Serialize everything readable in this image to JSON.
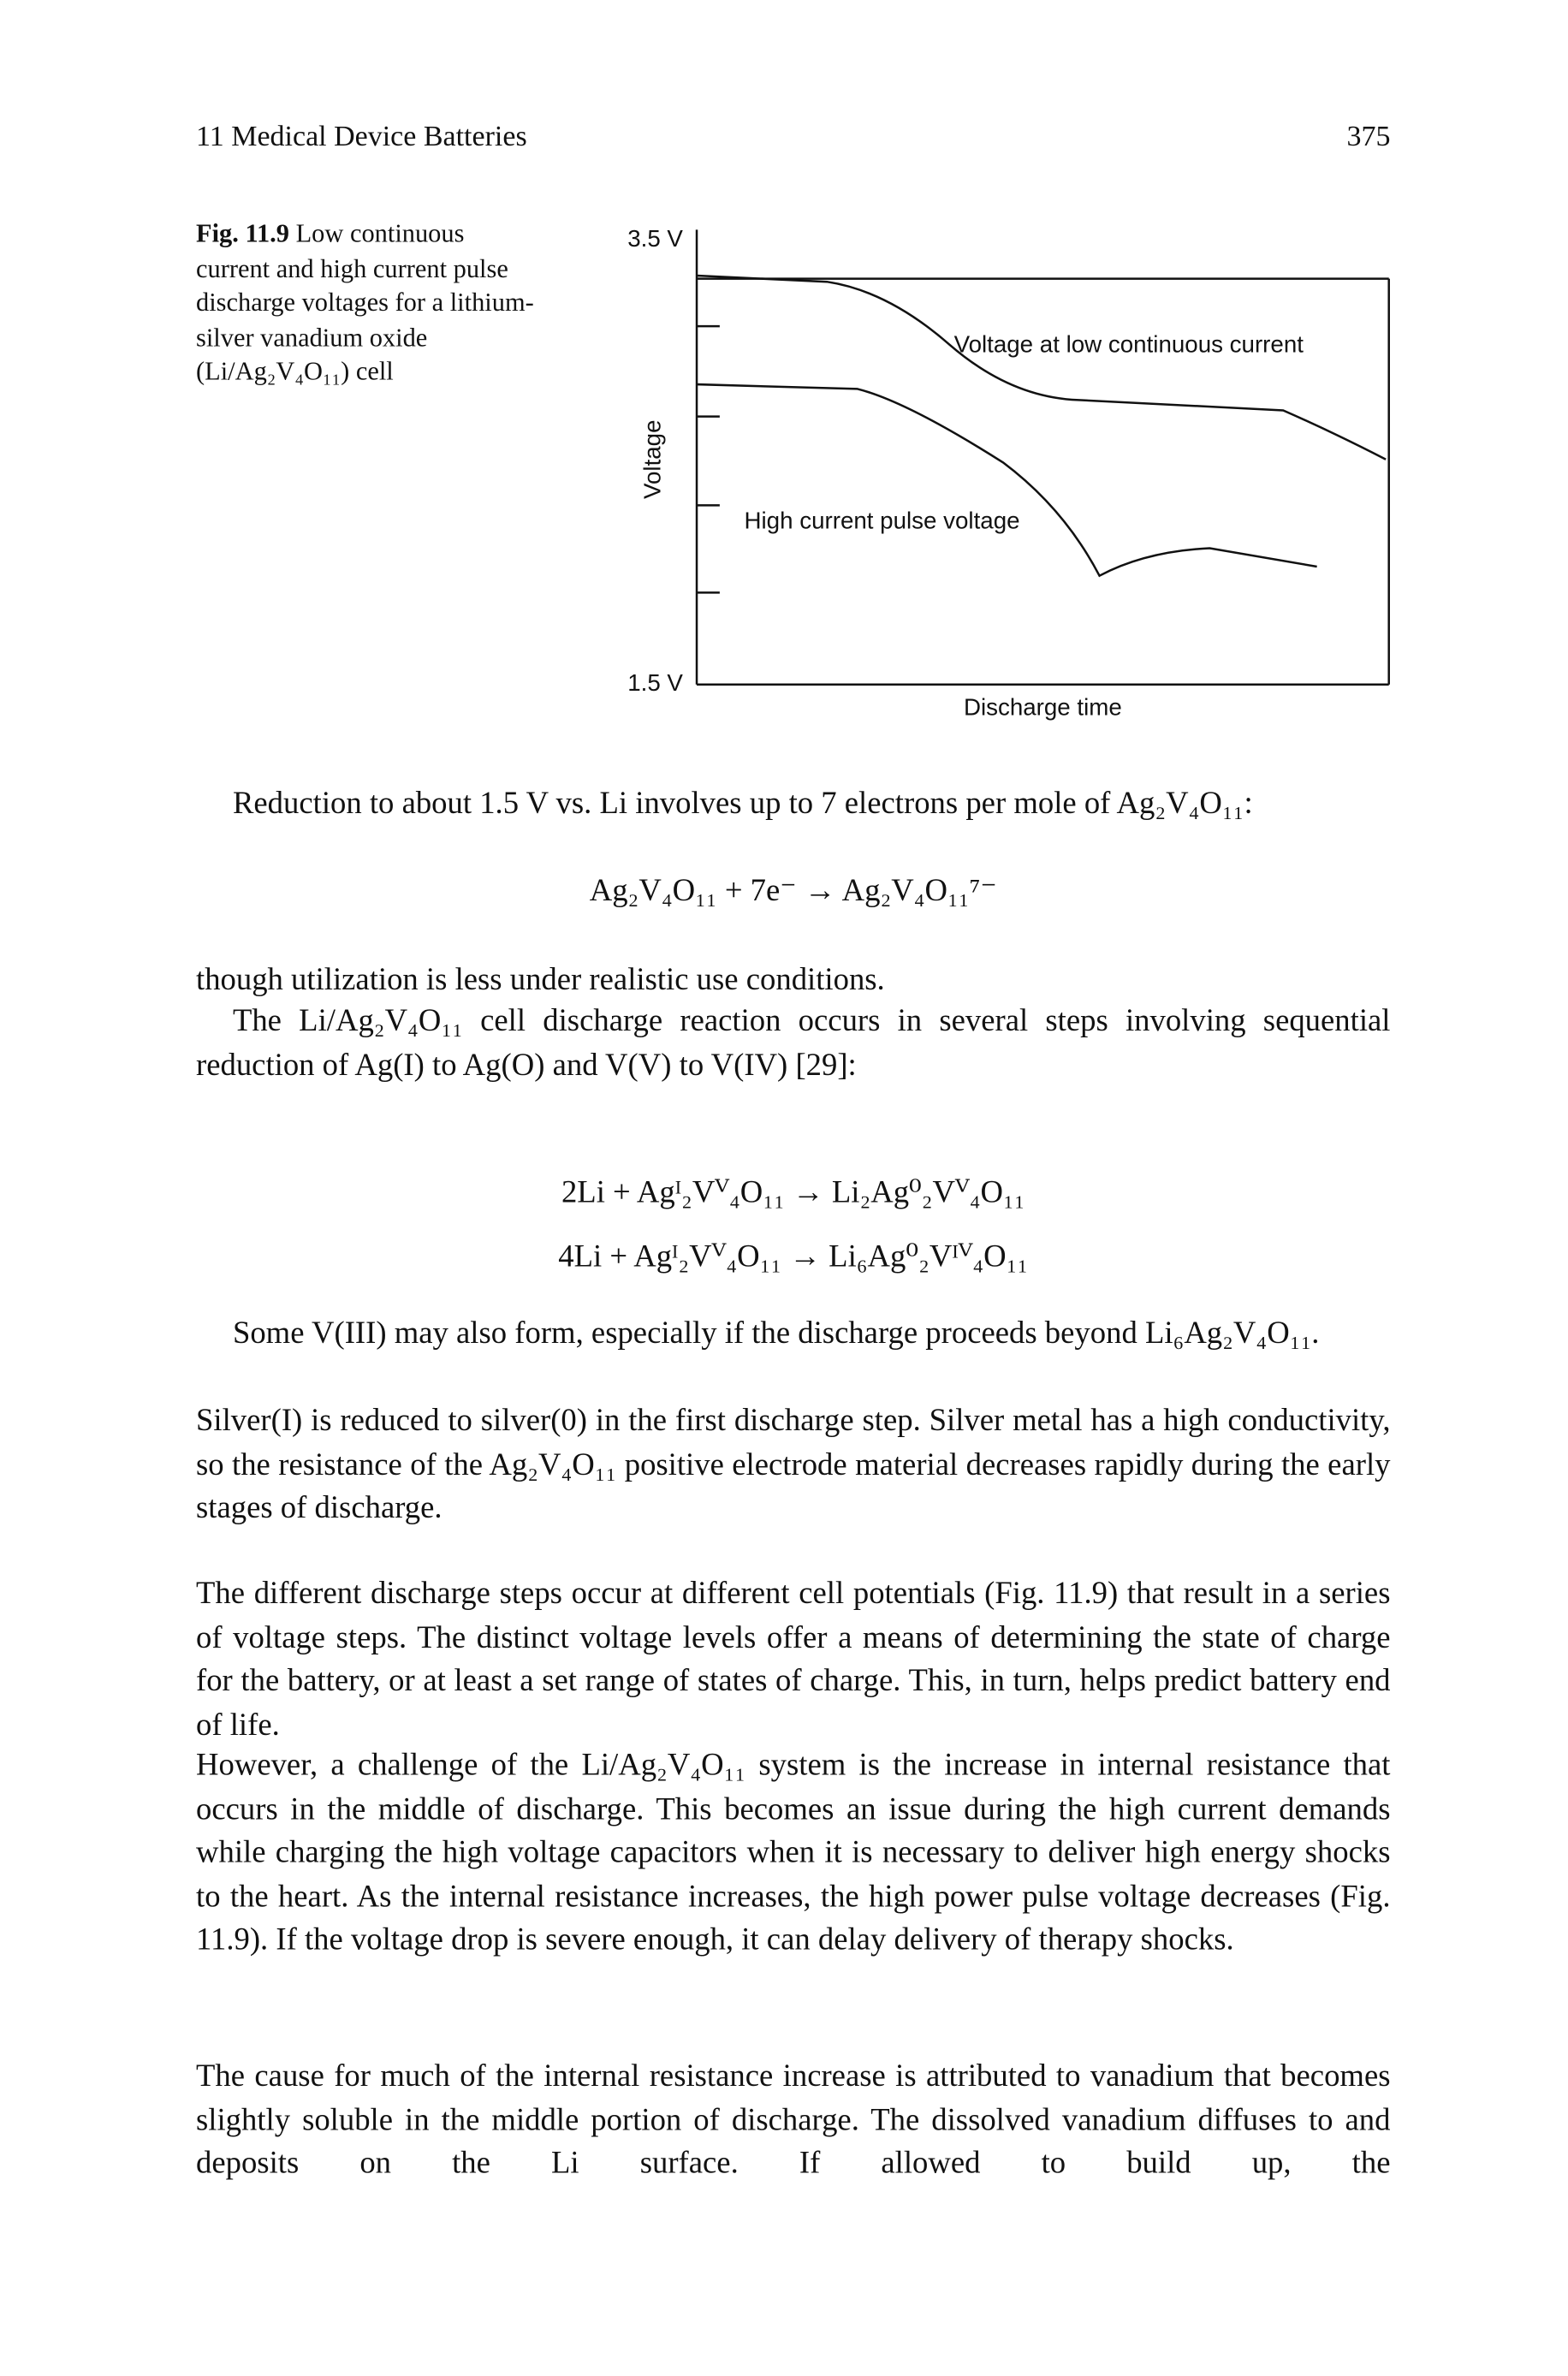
{
  "header": {
    "chapter": "11 Medical Device Batteries",
    "page": "375"
  },
  "figure": {
    "label": "Fig. 11.9",
    "caption": "Low continuous current and high current pulse discharge voltages for a lithium-silver vanadium oxide (Li/Ag₂V₄O₁₁) cell",
    "chart": {
      "y_axis_label": "Voltage",
      "y_top_label": "3.5 V",
      "y_bottom_label": "1.5 V",
      "x_axis_label": "Discharge time",
      "annotations": [
        "Voltage at low continuous current",
        "High current pulse voltage"
      ]
    }
  },
  "body": [
    {
      "text": "Reduction to about 1.5 V vs. Li involves up to 7 electrons per mole of Ag₂V₄O₁₁:"
    },
    {
      "text": "Ag₂V₄O₁₁ + 7e⁻ → Ag₂V₄O₁₁⁷⁻"
    },
    {
      "text": "though utilization is less under realistic use conditions."
    },
    {
      "text": "The Li/Ag₂V₄O₁₁ cell discharge reaction occurs in several steps involving sequential reduction of Ag(I) to Ag(O) and V(V) to V(IV) [29]:"
    },
    {
      "text": "2Li + Agᴵ₂Vⱽ₄O₁₁ → Li₂Ag⁰₂Vⱽ₄O₁₁"
    },
    {
      "text": "4Li + Agᴵ₂Vⱽ₄O₁₁ → Li₆Ag⁰₂Vᴵⱽ₄O₁₁"
    },
    {
      "text": "Some V(III) may also form, especially if the discharge proceeds beyond Li₆Ag₂V₄O₁₁."
    },
    {
      "text": "Silver(I) is reduced to silver(0) in the first discharge step. Silver metal has a high conductivity, so the resistance of the Ag₂V₄O₁₁ positive electrode material decreases rapidly during the early stages of discharge."
    },
    {
      "text": "The different discharge steps occur at different cell potentials (Fig. 11.9) that result in a series of voltage steps. The distinct voltage levels offer a means of determining the state of charge for the battery, or at least a set range of states of charge. This, in turn, helps predict battery end of life."
    },
    {
      "text": "However, a challenge of the Li/Ag₂V₄O₁₁ system is the increase in internal resistance that occurs in the middle of discharge. This becomes an issue during the high current demands while charging the high voltage capacitors when it is necessary to deliver high energy shocks to the heart. As the internal resistance increases, the high power pulse voltage decreases (Fig. 11.9). If the voltage drop is severe enough, it can delay delivery of therapy shocks."
    },
    {
      "text": "The cause for much of the internal resistance increase is attributed to vanadium that becomes slightly soluble in the middle portion of discharge. The dissolved vanadium diffuses to and deposits on the Li surface. If allowed to build up, the"
    }
  ]
}
